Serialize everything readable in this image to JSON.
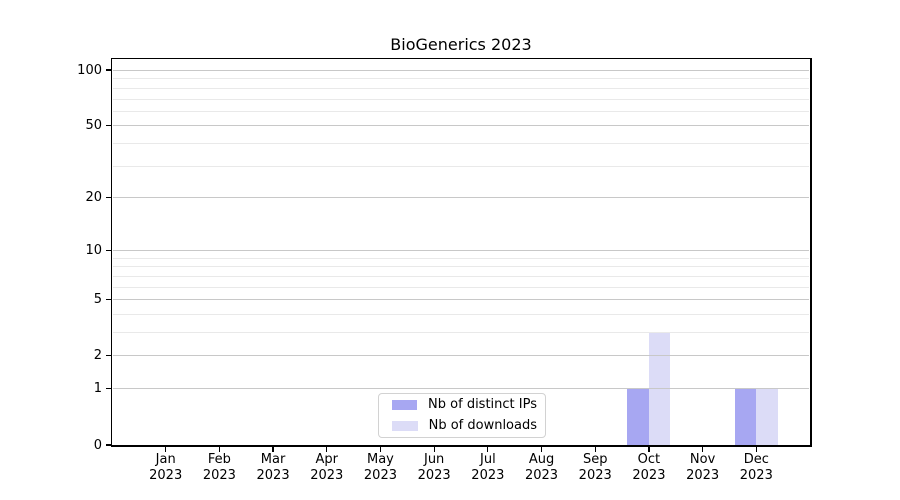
{
  "window": {
    "background": "#ffffff"
  },
  "chart_data": {
    "type": "bar",
    "title": "BioGenerics 2023",
    "categories": [
      "Jan",
      "Feb",
      "Mar",
      "Apr",
      "May",
      "Jun",
      "Jul",
      "Aug",
      "Sep",
      "Oct",
      "Nov",
      "Dec"
    ],
    "year_label": "2023",
    "series": [
      {
        "name": "Nb of distinct IPs",
        "color": "#a7a7f2",
        "values": [
          0,
          0,
          0,
          0,
          0,
          0,
          0,
          0,
          0,
          1,
          0,
          1
        ]
      },
      {
        "name": "Nb of downloads",
        "color": "#dcdcf7",
        "values": [
          0,
          0,
          0,
          0,
          0,
          0,
          0,
          0,
          0,
          3,
          0,
          1
        ]
      }
    ],
    "bar_width_ratio": 0.4,
    "yscale": "log1p",
    "ylim": [
      0,
      113
    ],
    "xlim": [
      -1,
      12
    ],
    "y_major_ticks": [
      0,
      1,
      2,
      5,
      10,
      20,
      50,
      100
    ],
    "y_major_gridlines": [
      1,
      2,
      5,
      10,
      20,
      50,
      100
    ],
    "y_minor_gridlines": [
      3,
      4,
      6,
      7,
      8,
      9,
      30,
      40,
      60,
      70,
      80,
      90
    ],
    "grid": "on",
    "legend_position": "lower center",
    "colors": {
      "spine": "#000000",
      "text": "#000000",
      "major_grid": "#c8c8c8",
      "minor_grid": "#e9e9e9",
      "legend_border": "#d2d2d2",
      "legend_bg": "#ffffff"
    }
  }
}
